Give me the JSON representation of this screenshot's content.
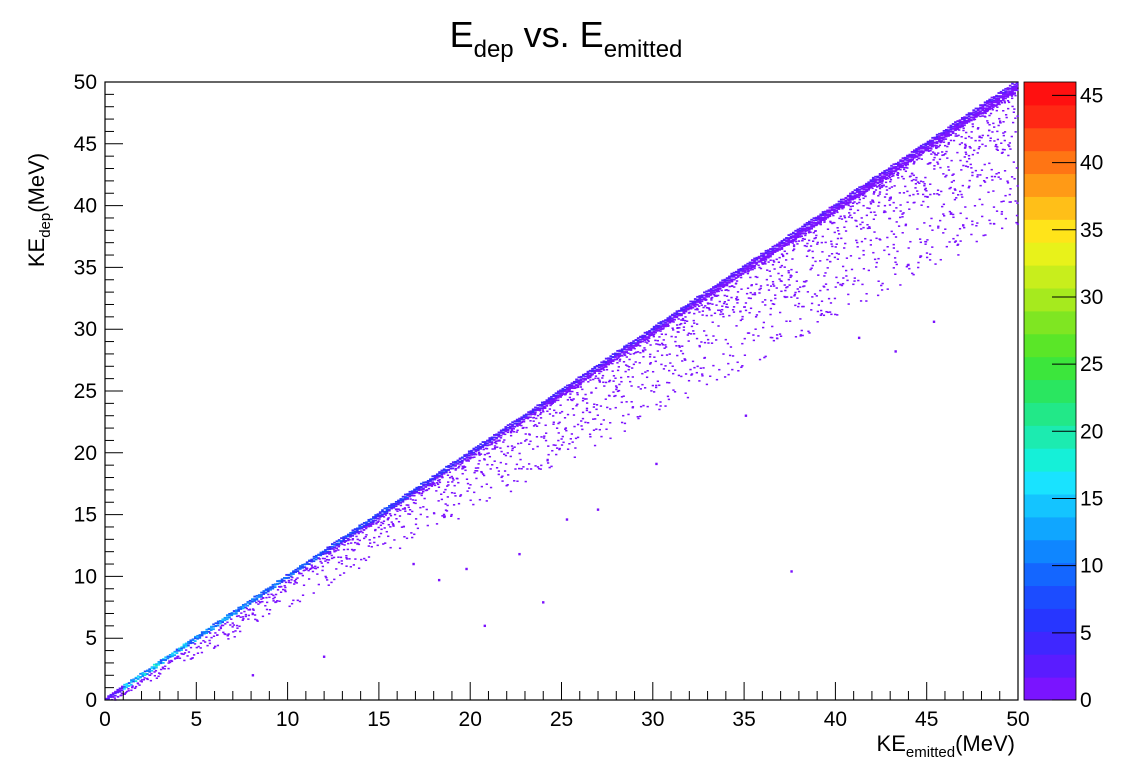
{
  "chart_data": {
    "type": "heatmap",
    "title": {
      "main": "E",
      "main_sub": "dep",
      "mid": " vs. E",
      "mid_sub": "emitted"
    },
    "xlabel": {
      "pre": "KE",
      "sub": "emitted",
      "post": "(MeV)"
    },
    "ylabel": {
      "pre": "KE",
      "sub": "dep",
      "post": "(MeV)"
    },
    "xlim": [
      0,
      50
    ],
    "ylim": [
      0,
      50
    ],
    "x_ticks": [
      "0",
      "5",
      "10",
      "15",
      "20",
      "25",
      "30",
      "35",
      "40",
      "45",
      "50"
    ],
    "y_ticks": [
      "0",
      "5",
      "10",
      "15",
      "20",
      "25",
      "30",
      "35",
      "40",
      "45",
      "50"
    ],
    "z_range": [
      0,
      46
    ],
    "z_ticks": [
      "0",
      "5",
      "10",
      "15",
      "20",
      "25",
      "30",
      "35",
      "40",
      "45"
    ],
    "grid": false,
    "description_band": {
      "relation": "KE_dep ≈ KE_emitted",
      "tail": "below diagonal"
    },
    "band_points": [
      {
        "x": 1,
        "y": 1,
        "z": 12
      },
      {
        "x": 3,
        "y": 3,
        "z": 14
      },
      {
        "x": 5,
        "y": 5,
        "z": 12
      },
      {
        "x": 7,
        "y": 7,
        "z": 10
      },
      {
        "x": 10,
        "y": 10,
        "z": 8
      },
      {
        "x": 15,
        "y": 15,
        "z": 6
      },
      {
        "x": 20,
        "y": 20,
        "z": 4
      },
      {
        "x": 25,
        "y": 25,
        "z": 3
      },
      {
        "x": 30,
        "y": 30,
        "z": 3
      },
      {
        "x": 35,
        "y": 35,
        "z": 2
      },
      {
        "x": 40,
        "y": 40,
        "z": 2
      },
      {
        "x": 45,
        "y": 45,
        "z": 2
      },
      {
        "x": 50,
        "y": 50,
        "z": 2
      }
    ],
    "outliers": [
      {
        "x": 37.6,
        "y": 10.4
      },
      {
        "x": 20.8,
        "y": 6.0
      },
      {
        "x": 24.0,
        "y": 7.9
      },
      {
        "x": 8.1,
        "y": 2.0
      },
      {
        "x": 12.0,
        "y": 3.5
      },
      {
        "x": 43.3,
        "y": 28.2
      },
      {
        "x": 45.4,
        "y": 30.6
      },
      {
        "x": 35.1,
        "y": 23.0
      },
      {
        "x": 22.7,
        "y": 11.8
      },
      {
        "x": 27.0,
        "y": 15.4
      },
      {
        "x": 18.3,
        "y": 9.7
      },
      {
        "x": 41.3,
        "y": 29.3
      },
      {
        "x": 47.0,
        "y": 38.4
      },
      {
        "x": 44.0,
        "y": 35.2
      },
      {
        "x": 30.2,
        "y": 19.1
      },
      {
        "x": 16.9,
        "y": 11.0
      },
      {
        "x": 19.8,
        "y": 10.6
      },
      {
        "x": 25.3,
        "y": 14.6
      }
    ],
    "colors": {
      "axis": "#000000",
      "low": "#7b10ff",
      "mid": "#1fc0ff",
      "high": "#ff1a10"
    }
  }
}
